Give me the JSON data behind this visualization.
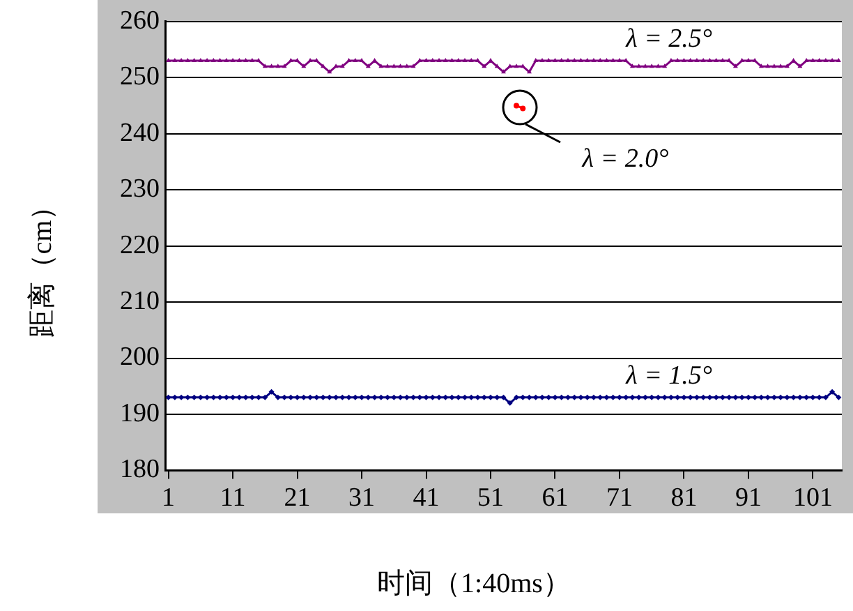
{
  "chart_data": {
    "type": "line",
    "xlabel": "时间（1:40ms）",
    "ylabel": "距离（cm）",
    "categories": [
      "1",
      null,
      null,
      null,
      null,
      null,
      null,
      null,
      null,
      null,
      "11",
      null,
      null,
      null,
      null,
      null,
      null,
      null,
      null,
      null,
      "21",
      null,
      null,
      null,
      null,
      null,
      null,
      null,
      null,
      null,
      "31",
      null,
      null,
      null,
      null,
      null,
      null,
      null,
      null,
      null,
      "41",
      null,
      null,
      null,
      null,
      null,
      null,
      null,
      null,
      null,
      "51",
      null,
      null,
      null,
      null,
      null,
      null,
      null,
      null,
      null,
      "61",
      null,
      null,
      null,
      null,
      null,
      null,
      null,
      null,
      null,
      "71",
      null,
      null,
      null,
      null,
      null,
      null,
      null,
      null,
      null,
      "81",
      null,
      null,
      null,
      null,
      null,
      null,
      null,
      null,
      null,
      "91",
      null,
      null,
      null,
      null,
      null,
      null,
      null,
      null,
      null,
      "101",
      null,
      null,
      null,
      null
    ],
    "series": [
      {
        "name": "λ = 2.5°",
        "color": "#800080",
        "marker": "triangle",
        "values": [
          253,
          253,
          253,
          253,
          253,
          253,
          253,
          253,
          253,
          253,
          253,
          253,
          253,
          253,
          253,
          252,
          252,
          252,
          252,
          253,
          253,
          252,
          253,
          253,
          252,
          251,
          252,
          252,
          253,
          253,
          253,
          252,
          253,
          252,
          252,
          252,
          252,
          252,
          252,
          253,
          253,
          253,
          253,
          253,
          253,
          253,
          253,
          253,
          253,
          252,
          253,
          252,
          251,
          252,
          252,
          252,
          251,
          253,
          253,
          253,
          253,
          253,
          253,
          253,
          253,
          253,
          253,
          253,
          253,
          253,
          253,
          253,
          252,
          252,
          252,
          252,
          252,
          252,
          253,
          253,
          253,
          253,
          253,
          253,
          253,
          253,
          253,
          253,
          252,
          253,
          253,
          253,
          252,
          252,
          252,
          252,
          252,
          253,
          252,
          253,
          253,
          253,
          253,
          253,
          253
        ]
      },
      {
        "name": "λ = 2.0°",
        "color": "#ff0000",
        "marker": "circle",
        "values": [
          null,
          null,
          null,
          null,
          null,
          null,
          null,
          null,
          null,
          null,
          null,
          null,
          null,
          null,
          null,
          null,
          null,
          null,
          null,
          null,
          null,
          null,
          null,
          null,
          null,
          null,
          null,
          null,
          null,
          null,
          null,
          null,
          null,
          null,
          null,
          null,
          null,
          null,
          null,
          null,
          null,
          null,
          null,
          null,
          null,
          null,
          null,
          null,
          null,
          null,
          null,
          null,
          null,
          null,
          245,
          244.5,
          null,
          null,
          null,
          null,
          null,
          null,
          null,
          null,
          null,
          null,
          null,
          null,
          null,
          null,
          null,
          null,
          null,
          null,
          null,
          null,
          null,
          null,
          null,
          null,
          null,
          null,
          null,
          null,
          null,
          null,
          null,
          null,
          null,
          null,
          null,
          null,
          null,
          null,
          null,
          null,
          null,
          null,
          null,
          null,
          null,
          null,
          null,
          null,
          null
        ]
      },
      {
        "name": "λ = 1.5°",
        "color": "#000080",
        "marker": "diamond",
        "values": [
          193,
          193,
          193,
          193,
          193,
          193,
          193,
          193,
          193,
          193,
          193,
          193,
          193,
          193,
          193,
          193,
          194,
          193,
          193,
          193,
          193,
          193,
          193,
          193,
          193,
          193,
          193,
          193,
          193,
          193,
          193,
          193,
          193,
          193,
          193,
          193,
          193,
          193,
          193,
          193,
          193,
          193,
          193,
          193,
          193,
          193,
          193,
          193,
          193,
          193,
          193,
          193,
          193,
          192,
          193,
          193,
          193,
          193,
          193,
          193,
          193,
          193,
          193,
          193,
          193,
          193,
          193,
          193,
          193,
          193,
          193,
          193,
          193,
          193,
          193,
          193,
          193,
          193,
          193,
          193,
          193,
          193,
          193,
          193,
          193,
          193,
          193,
          193,
          193,
          193,
          193,
          193,
          193,
          193,
          193,
          193,
          193,
          193,
          193,
          193,
          193,
          193,
          193,
          194,
          193
        ]
      }
    ],
    "ylim": [
      180,
      260
    ],
    "yticks": [
      180,
      190,
      200,
      210,
      220,
      230,
      240,
      250,
      260
    ],
    "grid": "y",
    "legend": false,
    "line_style": "solid"
  }
}
